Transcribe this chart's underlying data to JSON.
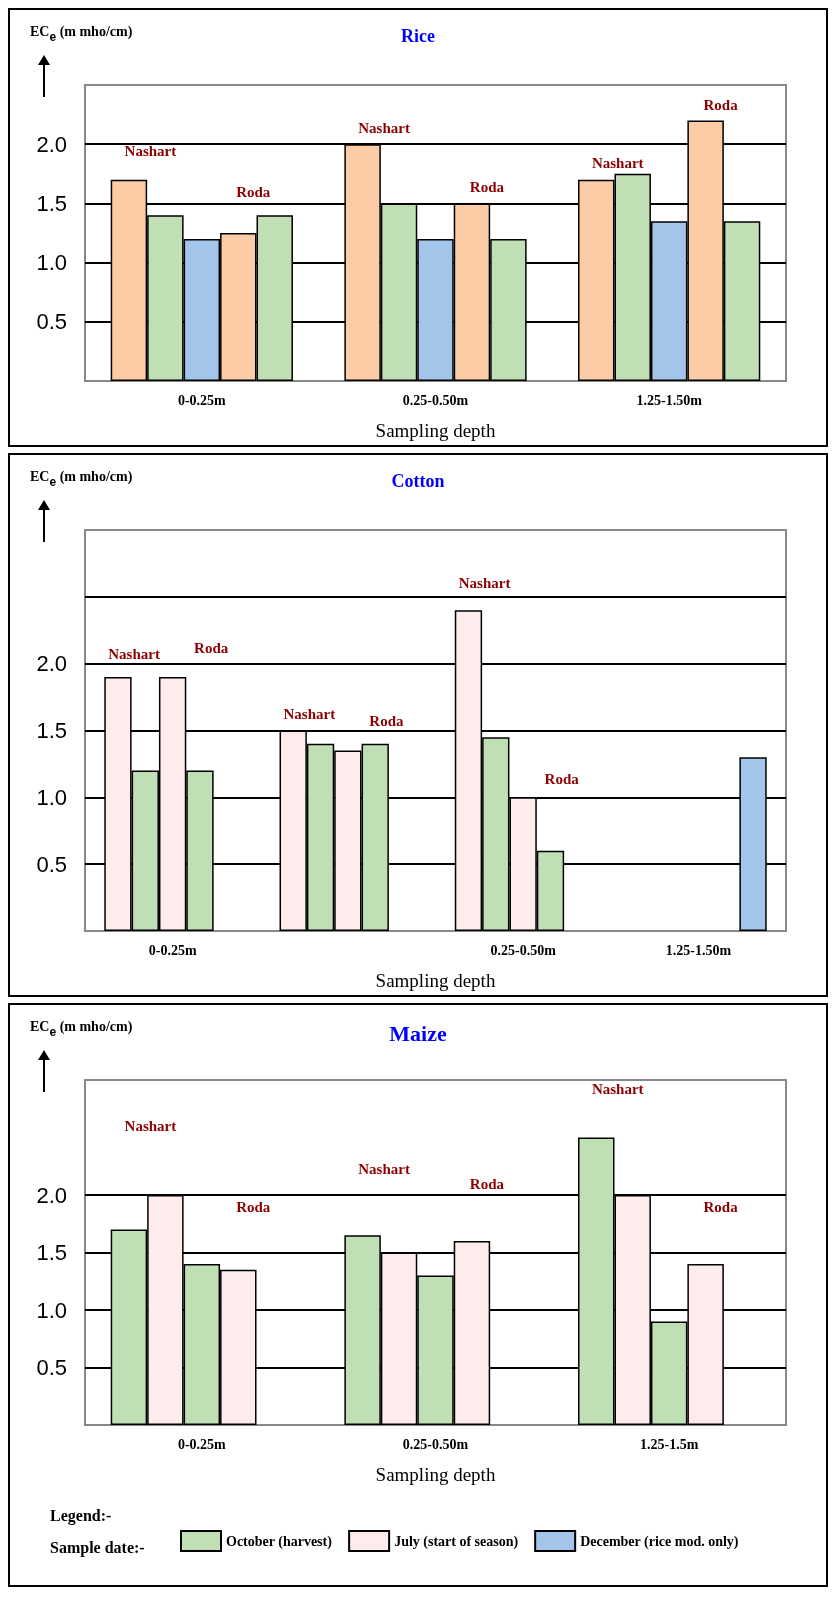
{
  "chart_data": [
    {
      "type": "bar",
      "title": "Rice",
      "xlabel": "Sampling depth",
      "ylabel": "EC$_{e}$ (m mho/cm)",
      "categories": [
        "0-0.25m",
        "0.25-0.50m",
        "1.25-1.50m"
      ],
      "series": [
        {
          "color": "#fccca6",
          "values": [
            1.7,
            2.0,
            1.7
          ]
        },
        {
          "color": "#c0dfb5",
          "values": [
            1.4,
            1.5,
            1.75
          ]
        },
        {
          "color": "#a3c5e9",
          "values": [
            1.2,
            1.2,
            1.35
          ]
        },
        {
          "color": "#fccca6",
          "values": [
            1.25,
            1.5,
            2.2
          ]
        },
        {
          "color": "#c0dfb5",
          "values": [
            1.4,
            1.2,
            1.35
          ]
        }
      ],
      "ylim": [
        0,
        2.5
      ],
      "yticks": [
        {
          "value": 0.5,
          "label": "0.5"
        },
        {
          "value": 1,
          "label": "1.0"
        },
        {
          "value": 1.5,
          "label": "1.5"
        },
        {
          "value": 2,
          "label": "2.0"
        }
      ],
      "grid": "y",
      "legend": false,
      "annotations": [
        "Nashart",
        "Roda",
        "Nashart",
        "Roda",
        "Nashart",
        "Roda"
      ]
    },
    {
      "type": "bar",
      "title": "Cotton",
      "xlabel": "Sampling depth",
      "ylabel": "EC$_{e}$ (m mho/cm)",
      "categories": [
        "0-0.25m",
        null,
        "0.25-0.50m",
        "1.25-1.50m"
      ],
      "series": [
        {
          "color": "#fdeceb",
          "values": [
            1.9,
            1.5,
            2.4,
            null
          ]
        },
        {
          "color": "#c0dfb5",
          "values": [
            1.2,
            1.4,
            1.45,
            null
          ]
        },
        {
          "color": "#fdeceb",
          "values": [
            1.9,
            1.35,
            1.0,
            null
          ]
        },
        {
          "color": "#c0dfb5",
          "values": [
            1.2,
            1.4,
            0.6,
            null
          ]
        },
        {
          "color": "#a3c5e9",
          "values": [
            null,
            null,
            null,
            1.3
          ]
        }
      ],
      "ylim": [
        0,
        3
      ],
      "yticks": [
        {
          "value": 0.5,
          "label": "0.5"
        },
        {
          "value": 1,
          "label": "1.0"
        },
        {
          "value": 1.5,
          "label": "1.5"
        },
        {
          "value": 2,
          "label": "2.0"
        },
        {
          "value": 2.5,
          "label": null
        }
      ],
      "grid": "y",
      "legend": false,
      "annotations": [
        "Nashart",
        "Roda",
        "Nashart",
        "Roda",
        "Nashart",
        "Roda"
      ]
    },
    {
      "type": "bar",
      "title": "Maize",
      "xlabel": "Sampling depth",
      "ylabel": "EC$_{e}$ (m mho/cm)",
      "categories": [
        "0-0.25m",
        "0.25-0.50m",
        "1.25-1.5m"
      ],
      "series": [
        {
          "name": "October (harvest)",
          "color": "#c0dfb5",
          "values": [
            1.7,
            1.65,
            2.5
          ]
        },
        {
          "name": "July (start of season)",
          "color": "#fdeceb",
          "values": [
            2.0,
            1.5,
            2.0
          ]
        },
        {
          "color": "#c0dfb5",
          "values": [
            1.4,
            1.3,
            0.9
          ]
        },
        {
          "color": "#fdeceb",
          "values": [
            1.35,
            1.6,
            1.4
          ]
        },
        {
          "name": "December (rice mod. only)",
          "color": "#a3c5e9",
          "values": [
            null,
            null,
            null
          ]
        }
      ],
      "ylim": [
        0,
        3
      ],
      "yticks": [
        {
          "value": 0.5,
          "label": "0.5"
        },
        {
          "value": 1,
          "label": "1.0"
        },
        {
          "value": 1.5,
          "label": "1.5"
        },
        {
          "value": 2,
          "label": "2.0"
        }
      ],
      "grid": "y",
      "legend": "bottom",
      "legend_title": "Sample date:-",
      "annotations": [
        "Legend:-",
        "Nashart",
        "Roda",
        "Nashart",
        "Roda",
        "Nashart",
        "Roda"
      ]
    }
  ]
}
